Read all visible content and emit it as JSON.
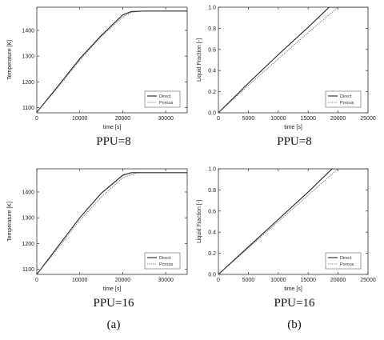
{
  "chart_data": [
    {
      "type": "line",
      "panel": "top-left",
      "caption": "PPU=8",
      "xlabel": "time [s]",
      "ylabel": "Temperature [K]",
      "xlim": [
        0,
        35000
      ],
      "ylim": [
        1080,
        1490
      ],
      "xticks": [
        0,
        10000,
        20000,
        30000
      ],
      "yticks": [
        1100,
        1200,
        1300,
        1400
      ],
      "legend_position": "bottom-right",
      "series": [
        {
          "name": "Direct",
          "style": "solid",
          "x": [
            0,
            5000,
            10000,
            15000,
            20000,
            22000,
            25000,
            35000
          ],
          "y": [
            1082,
            1185,
            1290,
            1380,
            1460,
            1473,
            1475,
            1475
          ]
        },
        {
          "name": "Porous",
          "style": "dotted",
          "x": [
            0,
            5000,
            10000,
            15000,
            20000,
            22000,
            25000,
            35000
          ],
          "y": [
            1082,
            1180,
            1284,
            1376,
            1452,
            1470,
            1475,
            1475
          ]
        }
      ]
    },
    {
      "type": "line",
      "panel": "top-right",
      "caption": "PPU=8",
      "xlabel": "time [s]",
      "ylabel": "Liquid Fraction [-]",
      "xlim": [
        0,
        25000
      ],
      "ylim": [
        0,
        1
      ],
      "xticks": [
        0,
        5000,
        10000,
        15000,
        20000,
        25000
      ],
      "yticks": [
        0,
        0.2,
        0.4,
        0.6,
        0.8,
        1.0
      ],
      "legend_position": "bottom-right",
      "series": [
        {
          "name": "Direct",
          "style": "solid",
          "x": [
            0,
            5000,
            10000,
            15000,
            18500,
            25000
          ],
          "y": [
            0,
            0.28,
            0.55,
            0.81,
            1.0,
            1.0
          ]
        },
        {
          "name": "Porous",
          "style": "dotted",
          "x": [
            0,
            5000,
            10000,
            15000,
            20000,
            25000
          ],
          "y": [
            0,
            0.26,
            0.51,
            0.76,
            1.0,
            1.0
          ]
        }
      ]
    },
    {
      "type": "line",
      "panel": "bottom-left",
      "caption": "PPU=16",
      "xlabel": "time [s]",
      "ylabel": "Temperature [K]",
      "xlim": [
        0,
        35000
      ],
      "ylim": [
        1080,
        1490
      ],
      "xticks": [
        0,
        10000,
        20000,
        30000
      ],
      "yticks": [
        1100,
        1200,
        1300,
        1400
      ],
      "legend_position": "bottom-right",
      "series": [
        {
          "name": "Direct",
          "style": "solid",
          "x": [
            0,
            5000,
            10000,
            15000,
            20000,
            22000,
            25000,
            35000
          ],
          "y": [
            1080,
            1190,
            1300,
            1395,
            1465,
            1475,
            1475,
            1475
          ]
        },
        {
          "name": "Porous",
          "style": "dotted",
          "x": [
            0,
            5000,
            10000,
            15000,
            20000,
            23000,
            25000,
            35000
          ],
          "y": [
            1080,
            1183,
            1290,
            1380,
            1455,
            1473,
            1475,
            1475
          ]
        }
      ]
    },
    {
      "type": "line",
      "panel": "bottom-right",
      "caption": "PPU=16",
      "xlabel": "time [s]",
      "ylabel": "Liquid Fraction [-]",
      "xlim": [
        0,
        25000
      ],
      "ylim": [
        0,
        1
      ],
      "xticks": [
        0,
        5000,
        10000,
        15000,
        20000,
        25000
      ],
      "yticks": [
        0,
        0.2,
        0.4,
        0.6,
        0.8,
        1.0
      ],
      "legend_position": "bottom-right",
      "series": [
        {
          "name": "Direct",
          "style": "solid",
          "x": [
            0,
            5000,
            10000,
            15000,
            19000,
            25000
          ],
          "y": [
            0,
            0.26,
            0.52,
            0.78,
            1.0,
            1.0
          ]
        },
        {
          "name": "Porous",
          "style": "dotted",
          "x": [
            0,
            5000,
            10000,
            15000,
            20000,
            25000
          ],
          "y": [
            0,
            0.25,
            0.5,
            0.75,
            1.0,
            1.0
          ]
        }
      ]
    }
  ],
  "sublabels": [
    "(a)",
    "(b)"
  ]
}
